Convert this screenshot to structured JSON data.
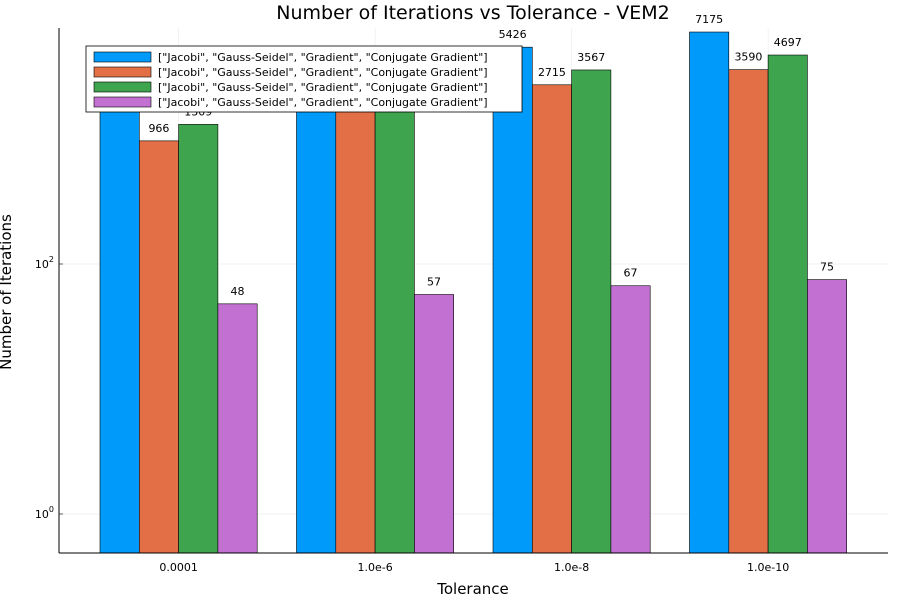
{
  "chart_data": {
    "type": "bar",
    "title": "Number of Iterations vs Tolerance - VEM2",
    "xlabel": "Tolerance",
    "ylabel": "Number of Iterations",
    "yscale": "log10",
    "y_ticks": [
      {
        "value": 1,
        "base": "10",
        "exp": "0"
      },
      {
        "value": 100,
        "base": "10",
        "exp": "2"
      }
    ],
    "grid": true,
    "legend_position": "top-left",
    "categories": [
      "0.0001",
      "1.0e-6",
      "1.0e-8",
      "1.0e-10"
    ],
    "series": [
      {
        "name": "[\"Jacobi\", \"Gauss-Seidel\", \"Gradient\", \"Conjugate Gradient\"]",
        "color": "#009AFA",
        "values": [
          1928,
          3677,
          5426,
          7175
        ]
      },
      {
        "name": "[\"Jacobi\", \"Gauss-Seidel\", \"Gradient\", \"Conjugate Gradient\"]",
        "color": "#E26F46",
        "values": [
          966,
          1841,
          2715,
          3590
        ]
      },
      {
        "name": "[\"Jacobi\", \"Gauss-Seidel\", \"Gradient\", \"Conjugate Gradient\"]",
        "color": "#3EA44E",
        "values": [
          1309,
          2439,
          3567,
          4697
        ]
      },
      {
        "name": "[\"Jacobi\", \"Gauss-Seidel\", \"Gradient\", \"Conjugate Gradient\"]",
        "color": "#C271D2",
        "values": [
          48,
          57,
          67,
          75
        ]
      }
    ]
  }
}
